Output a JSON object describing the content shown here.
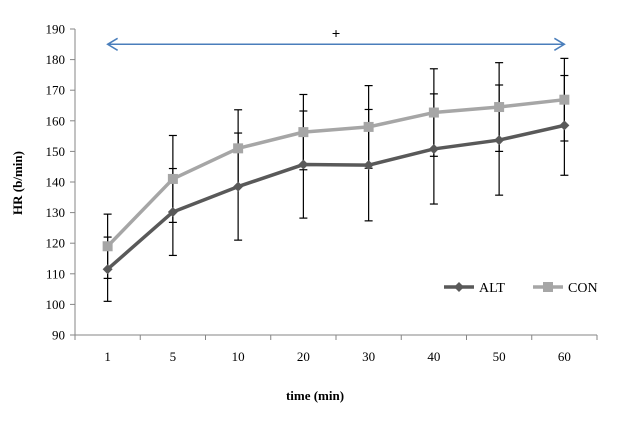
{
  "chart_data": {
    "type": "line",
    "xlabel": "time (min)",
    "ylabel": "HR (b/min)",
    "ylim": [
      90,
      190
    ],
    "yticks": [
      90,
      100,
      110,
      120,
      130,
      140,
      150,
      160,
      170,
      180,
      190
    ],
    "categories": [
      "1",
      "5",
      "10",
      "20",
      "30",
      "40",
      "50",
      "60"
    ],
    "grid": false,
    "legend_position": "bottom-right",
    "series": [
      {
        "name": "ALT",
        "color": "#595959",
        "marker": "diamond",
        "values": [
          111.5,
          130.2,
          138.5,
          145.7,
          145.5,
          150.8,
          153.7,
          158.5
        ],
        "error": [
          10.5,
          14.2,
          17.5,
          17.5,
          18.2,
          18.0,
          18.0,
          16.3
        ]
      },
      {
        "name": "CON",
        "color": "#a6a6a6",
        "marker": "square",
        "values": [
          119.0,
          141.0,
          151.0,
          156.3,
          158.0,
          162.7,
          164.5,
          166.9
        ],
        "error": [
          10.5,
          14.2,
          12.6,
          12.3,
          13.5,
          14.3,
          14.5,
          13.5
        ]
      }
    ],
    "annotations": [
      {
        "type": "double-arrow",
        "from_category": "1",
        "to_category": "60",
        "y": 185,
        "label": "+",
        "color": "#4a7ebb"
      }
    ]
  }
}
